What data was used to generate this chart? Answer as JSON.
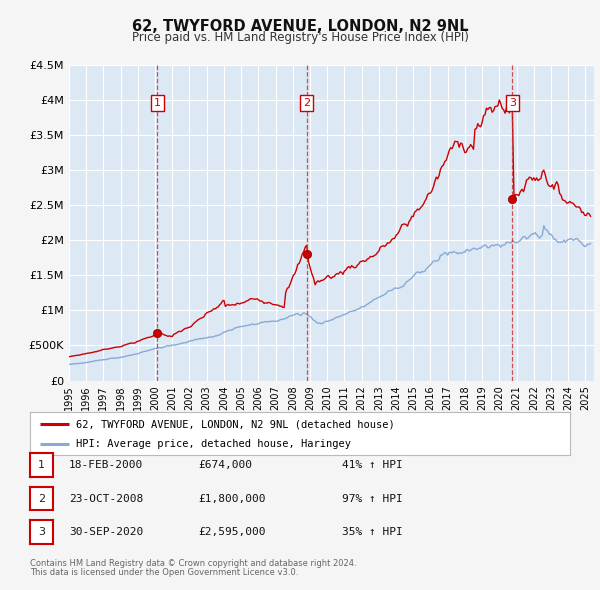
{
  "title": "62, TWYFORD AVENUE, LONDON, N2 9NL",
  "subtitle": "Price paid vs. HM Land Registry's House Price Index (HPI)",
  "background_color": "#f5f5f5",
  "plot_bg_color": "#dde8f5",
  "grid_color": "#ffffff",
  "red_line_color": "#cc0000",
  "blue_line_color": "#88aad4",
  "vline_color": "#cc3333",
  "ylim": [
    0,
    4500000
  ],
  "xlim_start": 1995.0,
  "xlim_end": 2025.5,
  "yticks": [
    0,
    500000,
    1000000,
    1500000,
    2000000,
    2500000,
    3000000,
    3500000,
    4000000,
    4500000
  ],
  "ytick_labels": [
    "£0",
    "£500K",
    "£1M",
    "£1.5M",
    "£2M",
    "£2.5M",
    "£3M",
    "£3.5M",
    "£4M",
    "£4.5M"
  ],
  "xticks": [
    1995,
    1996,
    1997,
    1998,
    1999,
    2000,
    2001,
    2002,
    2003,
    2004,
    2005,
    2006,
    2007,
    2008,
    2009,
    2010,
    2011,
    2012,
    2013,
    2014,
    2015,
    2016,
    2017,
    2018,
    2019,
    2020,
    2021,
    2022,
    2023,
    2024,
    2025
  ],
  "sales": [
    {
      "date": 2000.13,
      "price": 674000,
      "label": "1"
    },
    {
      "date": 2008.81,
      "price": 1800000,
      "label": "2"
    },
    {
      "date": 2020.75,
      "price": 2595000,
      "label": "3"
    }
  ],
  "legend_red_label": "62, TWYFORD AVENUE, LONDON, N2 9NL (detached house)",
  "legend_blue_label": "HPI: Average price, detached house, Haringey",
  "table_rows": [
    {
      "num": "1",
      "date": "18-FEB-2000",
      "price": "£674,000",
      "pct": "41% ↑ HPI"
    },
    {
      "num": "2",
      "date": "23-OCT-2008",
      "price": "£1,800,000",
      "pct": "97% ↑ HPI"
    },
    {
      "num": "3",
      "date": "30-SEP-2020",
      "price": "£2,595,000",
      "pct": "35% ↑ HPI"
    }
  ],
  "footnote1": "Contains HM Land Registry data © Crown copyright and database right 2024.",
  "footnote2": "This data is licensed under the Open Government Licence v3.0."
}
